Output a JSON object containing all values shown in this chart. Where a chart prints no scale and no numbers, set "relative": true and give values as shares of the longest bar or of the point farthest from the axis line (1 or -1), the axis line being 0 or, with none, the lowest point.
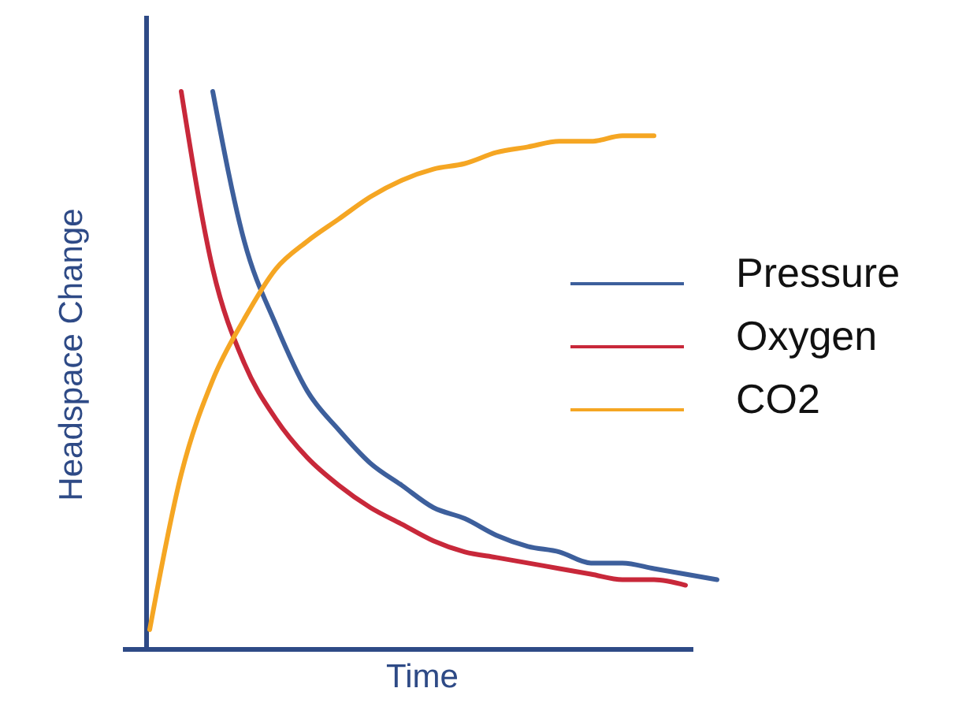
{
  "chart_data": {
    "type": "line",
    "relative": true,
    "xlabel": "Time",
    "ylabel": "Headspace Change",
    "legend": "right",
    "marker": "none",
    "line_style": "solid",
    "categories": [
      null,
      null,
      null,
      null,
      null,
      null,
      null,
      null,
      null,
      null,
      null,
      null,
      null,
      null,
      null,
      null,
      null,
      null,
      null
    ],
    "series": [
      {
        "name": "Pressure",
        "color": "#3d5f9c",
        "values": [
          null,
          null,
          1.0,
          0.73,
          0.58,
          0.46,
          0.39,
          0.33,
          0.29,
          0.25,
          0.23,
          0.2,
          0.18,
          0.17,
          0.15,
          0.15,
          0.14,
          0.13,
          0.12
        ]
      },
      {
        "name": "Oxygen",
        "color": "#c8283a",
        "values": [
          null,
          1.0,
          0.68,
          0.51,
          0.41,
          0.34,
          0.29,
          0.25,
          0.22,
          0.19,
          0.17,
          0.16,
          0.15,
          0.14,
          0.13,
          0.12,
          0.12,
          0.11,
          null
        ]
      },
      {
        "name": "CO2",
        "color": "#f5a623",
        "values": [
          0.03,
          0.31,
          0.48,
          0.59,
          0.68,
          0.73,
          0.77,
          0.81,
          0.84,
          0.86,
          0.87,
          0.89,
          0.9,
          0.91,
          0.91,
          0.92,
          0.92,
          null,
          null
        ]
      }
    ]
  }
}
